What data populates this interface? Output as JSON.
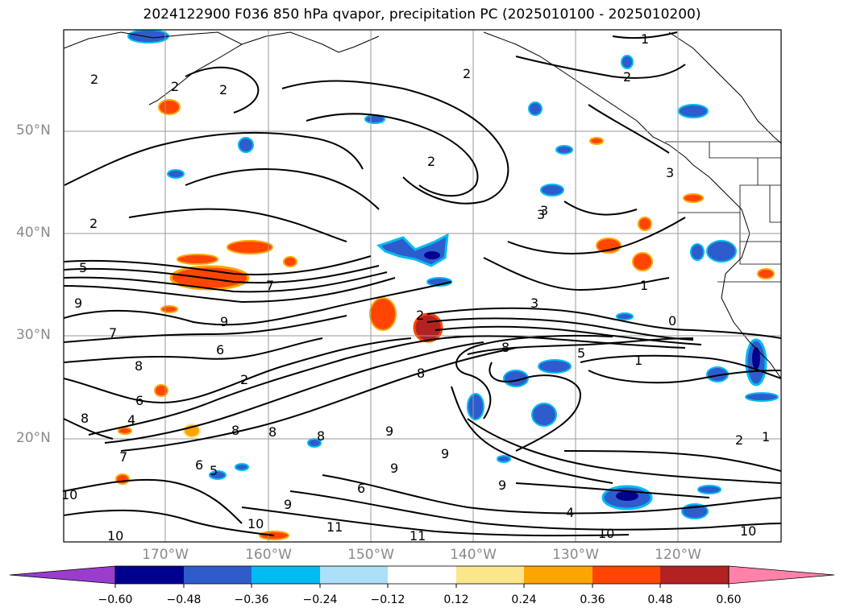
{
  "title": "2024122900 F036 850 hPa qvapor, precipitation PC (2025010100 - 2025010200)",
  "lat_labels": [
    "50°N",
    "40°N",
    "30°N",
    "20°N"
  ],
  "lon_labels": [
    "170°W",
    "160°W",
    "150°W",
    "140°W",
    "130°W",
    "120°W"
  ],
  "colorbar": {
    "ticks": [
      "−0.60",
      "−0.48",
      "−0.36",
      "−0.24",
      "−0.12",
      "0.12",
      "0.24",
      "0.36",
      "0.48",
      "0.60"
    ],
    "colors": [
      "#9a3ccc",
      "#000090",
      "#2e5ccc",
      "#00bcf2",
      "#abe0f8",
      "#ffffff",
      "#fbe68a",
      "#fca500",
      "#ff4500",
      "#b22222",
      "#ff82a9"
    ],
    "extend": "both"
  },
  "contour_labels": [
    "2",
    "2",
    "2",
    "1",
    "2",
    "2",
    "2",
    "3",
    "5",
    "7",
    "9",
    "9",
    "7",
    "6",
    "8",
    "6",
    "4",
    "2",
    "2",
    "3",
    "8",
    "8",
    "9",
    "9",
    "9",
    "9",
    "8",
    "8",
    "10",
    "10",
    "11",
    "11",
    "10",
    "10",
    "1",
    "0",
    "1",
    "1",
    "2",
    "3",
    "4",
    "10",
    "2",
    "6",
    "5",
    "6",
    "7",
    "5",
    "3",
    "9",
    "8",
    "8"
  ]
}
